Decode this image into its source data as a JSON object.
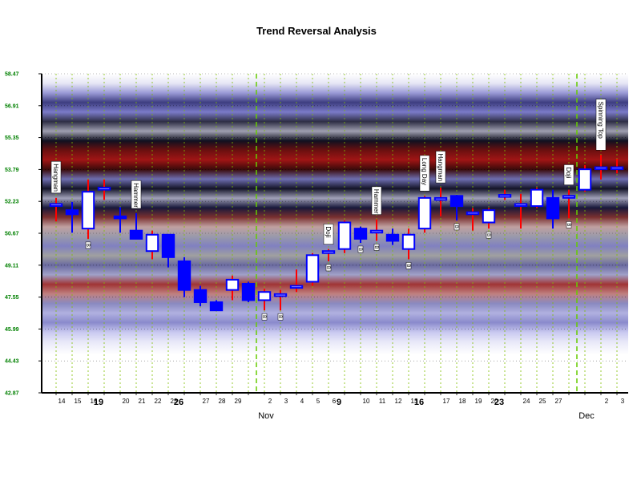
{
  "chart_data": {
    "type": "candlestick",
    "title": "Trend Reversal Analysis",
    "xlabel": "",
    "ylabel": "",
    "ylim": [
      42.87,
      58.47
    ],
    "yticks": [
      "42.87",
      "44.43",
      "45.99",
      "47.55",
      "49.11",
      "50.67",
      "52.23",
      "53.79",
      "55.35",
      "56.91",
      "58.47"
    ],
    "grid": true,
    "colors": {
      "up_body": "#ffffff",
      "down_body": "#0000ff",
      "body_border": "#0000ff",
      "up_wick": "#ff0000",
      "down_wick": "#0000ff",
      "grid": "#7fbf00",
      "ytick": "#008000"
    },
    "candles": [
      {
        "label": "14",
        "open": 52.1,
        "high": 52.4,
        "low": 51.25,
        "close": 52.1,
        "pattern": "Hangman"
      },
      {
        "label": "15",
        "open": 51.8,
        "high": 52.2,
        "low": 50.7,
        "close": 51.6,
        "pattern": ""
      },
      {
        "label": "16",
        "open": 50.9,
        "high": 53.3,
        "low": 50.4,
        "close": 52.7,
        "pattern": "",
        "mark": "B"
      },
      {
        "label": "",
        "open": 52.9,
        "high": 53.3,
        "low": 52.3,
        "close": 52.9,
        "pattern": ""
      },
      {
        "label": "20",
        "open": 51.5,
        "high": 51.95,
        "low": 50.7,
        "close": 51.4,
        "pattern": ""
      },
      {
        "label": "21",
        "open": 50.8,
        "high": 51.65,
        "low": 50.4,
        "close": 50.4,
        "pattern": "Hammer"
      },
      {
        "label": "22",
        "open": 49.8,
        "high": 50.8,
        "low": 49.4,
        "close": 50.6,
        "pattern": ""
      },
      {
        "label": "23",
        "open": 50.6,
        "high": 50.6,
        "low": 49.0,
        "close": 49.5,
        "pattern": ""
      },
      {
        "label": "",
        "open": 49.3,
        "high": 49.5,
        "low": 47.55,
        "close": 47.9,
        "pattern": ""
      },
      {
        "label": "27",
        "open": 47.9,
        "high": 48.1,
        "low": 47.1,
        "close": 47.3,
        "pattern": ""
      },
      {
        "label": "28",
        "open": 47.3,
        "high": 47.4,
        "low": 46.9,
        "close": 46.9,
        "pattern": ""
      },
      {
        "label": "29",
        "open": 47.9,
        "high": 48.6,
        "low": 47.4,
        "close": 48.4,
        "pattern": ""
      },
      {
        "label": "",
        "open": 48.2,
        "high": 48.3,
        "low": 47.3,
        "close": 47.4,
        "pattern": ""
      },
      {
        "label": "2",
        "open": 47.4,
        "high": 47.95,
        "low": 46.9,
        "close": 47.8,
        "pattern": "",
        "mark": "B"
      },
      {
        "label": "3",
        "open": 47.6,
        "high": 47.9,
        "low": 46.9,
        "close": 47.7,
        "pattern": "",
        "mark": "B"
      },
      {
        "label": "4",
        "open": 48.1,
        "high": 48.9,
        "low": 47.8,
        "close": 48.1,
        "pattern": ""
      },
      {
        "label": "5",
        "open": 48.3,
        "high": 49.7,
        "low": 48.1,
        "close": 49.6,
        "pattern": ""
      },
      {
        "label": "6",
        "open": 49.8,
        "high": 49.9,
        "low": 49.3,
        "close": 49.8,
        "pattern": "Doji",
        "mark": "B"
      },
      {
        "label": "",
        "open": 49.9,
        "high": 51.3,
        "low": 49.7,
        "close": 51.2,
        "pattern": ""
      },
      {
        "label": "10",
        "open": 50.9,
        "high": 51.0,
        "low": 50.2,
        "close": 50.4,
        "pattern": "",
        "mark": "B"
      },
      {
        "label": "11",
        "open": 50.8,
        "high": 51.35,
        "low": 50.3,
        "close": 50.8,
        "pattern": "Hammer",
        "mark": "B"
      },
      {
        "label": "12",
        "open": 50.6,
        "high": 50.9,
        "low": 50.1,
        "close": 50.3,
        "pattern": ""
      },
      {
        "label": "13",
        "open": 49.9,
        "high": 50.9,
        "low": 49.4,
        "close": 50.6,
        "pattern": "",
        "mark": "B"
      },
      {
        "label": "",
        "open": 50.9,
        "high": 52.5,
        "low": 50.7,
        "close": 52.4,
        "pattern": "Long Day"
      },
      {
        "label": "17",
        "open": 52.4,
        "high": 52.9,
        "low": 51.5,
        "close": 52.4,
        "pattern": "Hangman"
      },
      {
        "label": "18",
        "open": 52.5,
        "high": 52.55,
        "low": 51.3,
        "close": 52.0,
        "pattern": "",
        "mark": "B"
      },
      {
        "label": "19",
        "open": 51.7,
        "high": 51.9,
        "low": 50.8,
        "close": 51.7,
        "pattern": ""
      },
      {
        "label": "20",
        "open": 51.2,
        "high": 51.9,
        "low": 50.9,
        "close": 51.8,
        "pattern": "",
        "mark": "B"
      },
      {
        "label": "",
        "open": 52.5,
        "high": 52.8,
        "low": 52.3,
        "close": 52.55,
        "pattern": ""
      },
      {
        "label": "24",
        "open": 52.1,
        "high": 52.6,
        "low": 50.9,
        "close": 52.1,
        "pattern": ""
      },
      {
        "label": "25",
        "open": 52.0,
        "high": 52.9,
        "low": 51.9,
        "close": 52.8,
        "pattern": ""
      },
      {
        "label": "27",
        "open": 52.4,
        "high": 52.8,
        "low": 50.9,
        "close": 51.4,
        "pattern": ""
      },
      {
        "label": "",
        "open": 52.5,
        "high": 52.8,
        "low": 51.4,
        "close": 52.5,
        "pattern": "Doji",
        "mark": "B"
      },
      {
        "label": "",
        "open": 52.8,
        "high": 54.0,
        "low": 52.7,
        "close": 53.8,
        "pattern": ""
      },
      {
        "label": "2",
        "open": 53.9,
        "high": 54.5,
        "low": 53.3,
        "close": 53.9,
        "pattern": "Spinning Top"
      },
      {
        "label": "3",
        "open": 53.9,
        "high": 54.3,
        "low": 53.6,
        "close": 53.9,
        "pattern": ""
      }
    ],
    "week_labels": [
      {
        "after_index": 2,
        "label": "19"
      },
      {
        "after_index": 7,
        "label": "26"
      },
      {
        "after_index": 17,
        "label": "9"
      },
      {
        "after_index": 22,
        "label": "16"
      },
      {
        "after_index": 27,
        "label": "23"
      }
    ],
    "month_labels": [
      {
        "at_index": 13,
        "label": "Nov"
      },
      {
        "at_index": 33,
        "label": "Dec"
      }
    ],
    "annotation_mark": "B"
  }
}
